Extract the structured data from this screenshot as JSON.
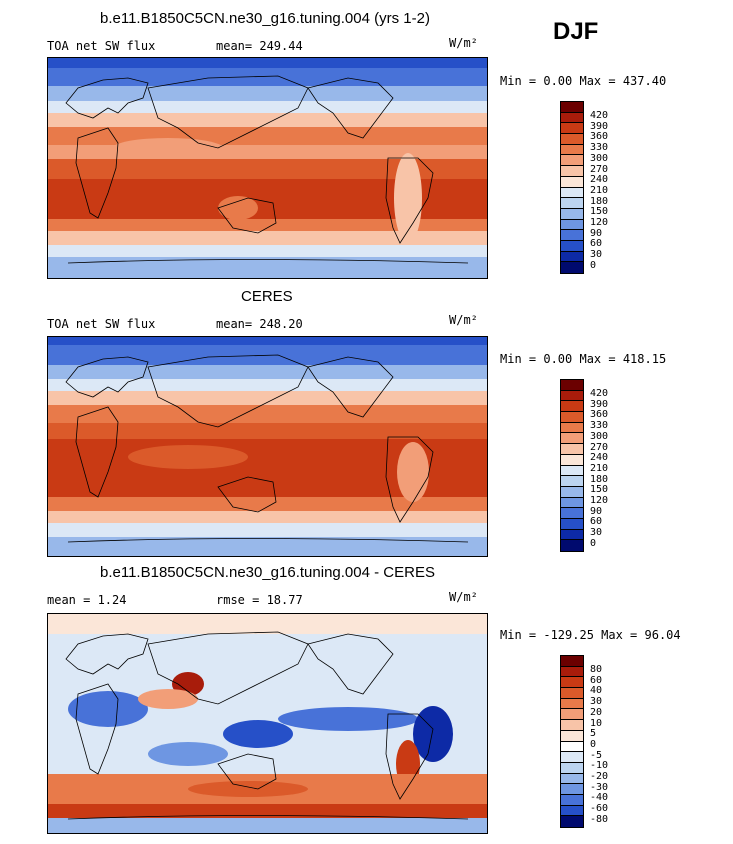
{
  "season": "DJF",
  "panels": [
    {
      "title": "b.e11.B1850C5CN.ne30_g16.tuning.004 (yrs 1-2)",
      "field": "TOA net SW flux",
      "stat": "mean= 249.44",
      "units": "W/m²",
      "minmax": "Min =   0.00 Max = 437.40",
      "colorbar_labels": [
        "420",
        "390",
        "360",
        "330",
        "300",
        "270",
        "240",
        "210",
        "180",
        "150",
        "120",
        "90",
        "60",
        "30",
        "0"
      ]
    },
    {
      "title": "CERES",
      "field": "TOA net SW flux",
      "stat": "mean= 248.20",
      "units": "W/m²",
      "minmax": "Min =   0.00 Max = 418.15",
      "colorbar_labels": [
        "420",
        "390",
        "360",
        "330",
        "300",
        "270",
        "240",
        "210",
        "180",
        "150",
        "120",
        "90",
        "60",
        "30",
        "0"
      ]
    },
    {
      "title": "b.e11.B1850C5CN.ne30_g16.tuning.004 - CERES",
      "field": "mean =    1.24",
      "stat": "rmse =   18.77",
      "units": "W/m²",
      "minmax": "Min = -129.25 Max =  96.04",
      "colorbar_labels": [
        "80",
        "60",
        "40",
        "30",
        "20",
        "10",
        "5",
        "0",
        "-5",
        "-10",
        "-20",
        "-30",
        "-40",
        "-60",
        "-80"
      ]
    }
  ],
  "colors": {
    "flux_scale": [
      "#6b0000",
      "#a81c0b",
      "#c93a14",
      "#db5a2a",
      "#e87a4a",
      "#f29e78",
      "#f8c4a8",
      "#fbe6d8",
      "#dce8f6",
      "#bcd4f0",
      "#98b8ea",
      "#6e96e2",
      "#4872d8",
      "#2650c8",
      "#0d2aa6",
      "#000a6e"
    ],
    "diff_scale": [
      "#6b0000",
      "#a81c0b",
      "#c93a14",
      "#db5a2a",
      "#e87a4a",
      "#f29e78",
      "#f8c4a8",
      "#fbe6d8",
      "#ffffff",
      "#dce8f6",
      "#bcd4f0",
      "#98b8ea",
      "#6e96e2",
      "#4872d8",
      "#2650c8",
      "#000a6e"
    ],
    "land_outline": "#000000"
  }
}
